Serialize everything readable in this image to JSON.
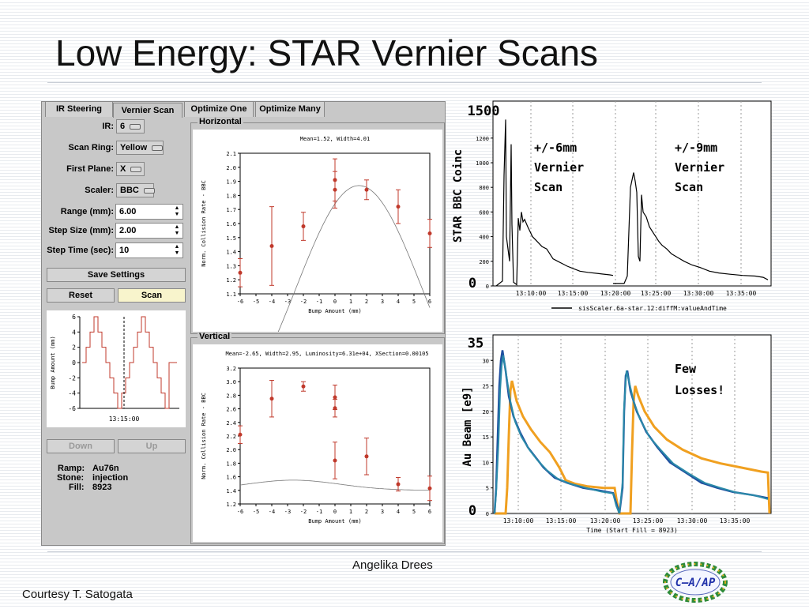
{
  "slide": {
    "title": "Low Energy: STAR Vernier Scans",
    "author": "Angelika Drees",
    "courtesy": "Courtesy T. Satogata",
    "logo_text": "C–A/AP"
  },
  "tabs": [
    "IR Steering",
    "Vernier Scan",
    "Optimize One",
    "Optimize Many"
  ],
  "controls": {
    "ir": {
      "label": "IR:",
      "value": "6"
    },
    "scan_ring": {
      "label": "Scan Ring:",
      "value": "Yellow"
    },
    "first_plane": {
      "label": "First Plane:",
      "value": "X"
    },
    "scaler": {
      "label": "Scaler:",
      "value": "BBC"
    },
    "range": {
      "label": "Range (mm):",
      "value": "6.00"
    },
    "step_size": {
      "label": "Step Size (mm):",
      "value": "2.00"
    },
    "step_time": {
      "label": "Step Time (sec):",
      "value": "10"
    },
    "save_settings": "Save Settings",
    "reset": "Reset",
    "scan": "Scan",
    "down": "Down",
    "up": "Up",
    "ramp_label": "Ramp:",
    "ramp_value": "Au76n",
    "stone_label": "Stone:",
    "stone_value": "injection",
    "fill_label": "Fill:",
    "fill_value": "8923"
  },
  "frames": {
    "horizontal": "Horizontal",
    "vertical": "Vertical"
  },
  "chart_data": [
    {
      "type": "line",
      "id": "bump-history",
      "ylabel": "Bump Amount (mm)",
      "yticks": [
        "6",
        "4",
        "2",
        "0",
        "-2",
        "-4",
        "-6"
      ],
      "ylim": [
        -6,
        6
      ],
      "xtick": "13:15:00",
      "color": "#c0392b",
      "steps": [
        0,
        2,
        4,
        6,
        4,
        2,
        0,
        -2,
        -4,
        -6,
        -4,
        -2,
        0,
        2,
        4,
        6,
        4,
        2,
        0,
        -2,
        -4,
        -6,
        0,
        0
      ]
    },
    {
      "type": "scatter",
      "id": "horizontal-scan",
      "title": "Mean=1.52, Width=4.01",
      "xlabel": "Bump Amount (mm)",
      "ylabel": "Norm. Collision Rate - BBC",
      "xticks": [
        "-6",
        "-5",
        "-4",
        "-3",
        "-2",
        "-1",
        "0",
        "1",
        "2",
        "3",
        "4",
        "5",
        "6"
      ],
      "yticks": [
        "2.1",
        "2.0",
        "1.9",
        "1.8",
        "1.7",
        "1.6",
        "1.5",
        "1.4",
        "1.3",
        "1.2",
        "1.1"
      ],
      "xlim": [
        -6,
        6
      ],
      "ylim": [
        1.1,
        2.1
      ],
      "points": [
        {
          "x": -6,
          "y": 1.25,
          "err": 0.1
        },
        {
          "x": -4,
          "y": 1.44,
          "err": 0.28
        },
        {
          "x": -2,
          "y": 1.58,
          "err": 0.1
        },
        {
          "x": 0,
          "y": 1.91,
          "err": 0.15
        },
        {
          "x": 0,
          "y": 1.84,
          "err": 0.13
        },
        {
          "x": 2,
          "y": 1.84,
          "err": 0.07
        },
        {
          "x": 4,
          "y": 1.72,
          "err": 0.12
        },
        {
          "x": 6,
          "y": 1.53,
          "err": 0.1
        }
      ],
      "fit": {
        "mean": 1.52,
        "width": 4.01,
        "amplitude": 1.87,
        "offset": 0.0
      }
    },
    {
      "type": "scatter",
      "id": "vertical-scan",
      "title": "Mean=-2.65, Width=2.95, Luminosity=6.31e+04, XSection=0.00105",
      "xlabel": "Bump Amount (mm)",
      "ylabel": "Norm. Collision Rate - BBC",
      "xticks": [
        "-6",
        "-5",
        "-4",
        "-3",
        "-2",
        "-1",
        "0",
        "1",
        "2",
        "3",
        "4",
        "5",
        "6"
      ],
      "yticks": [
        "3.2",
        "3.0",
        "2.8",
        "2.6",
        "2.4",
        "2.2",
        "2.0",
        "1.8",
        "1.6",
        "1.4",
        "1.2"
      ],
      "xlim": [
        -6,
        6
      ],
      "ylim": [
        1.2,
        3.2
      ],
      "points": [
        {
          "x": -6,
          "y": 2.22,
          "err": 0.13
        },
        {
          "x": -4,
          "y": 2.75,
          "err": 0.27
        },
        {
          "x": -2,
          "y": 2.93,
          "err": 0.07
        },
        {
          "x": 0,
          "y": 2.77,
          "err": 0.18
        },
        {
          "x": 0,
          "y": 2.61,
          "err": 0.13
        },
        {
          "x": 0,
          "y": 1.84,
          "err": 0.27
        },
        {
          "x": 2,
          "y": 1.9,
          "err": 0.27
        },
        {
          "x": 4,
          "y": 1.49,
          "err": 0.1
        },
        {
          "x": 6,
          "y": 1.43,
          "err": 0.18
        }
      ],
      "fit": {
        "mean": -2.65,
        "width": 2.95,
        "amplitude": 1.55,
        "offset": 1.4
      }
    },
    {
      "type": "line",
      "id": "star-bbc-coinc",
      "ylabel": "STAR BBC Coinc",
      "ymax_label": "1500",
      "ymin_label": "0",
      "yticks": [
        "1200",
        "1000",
        "800",
        "600",
        "400",
        "200",
        "0"
      ],
      "xticks": [
        "13:10:00",
        "13:15:00",
        "13:20:00",
        "13:25:00",
        "13:30:00",
        "13:35:00"
      ],
      "ylim": [
        0,
        1500
      ],
      "legend": "sisScaler.6a-star.12:diffM:valueAndTime",
      "annotations": [
        "+/-6mm",
        "Vernier",
        "Scan",
        "+/-9mm",
        "Vernier",
        "Scan"
      ],
      "color": "#000000"
    },
    {
      "type": "line",
      "id": "au-beam",
      "ylabel": "Au Beam [e9]",
      "ymax_label": "35",
      "ymin_label": "0",
      "yticks": [
        "30",
        "25",
        "20",
        "15",
        "10",
        "5",
        "0"
      ],
      "xticks": [
        "13:10:00",
        "13:15:00",
        "13:20:00",
        "13:25:00",
        "13:30:00",
        "13:35:00"
      ],
      "xlabel": "Time (Start Fill = 8923)",
      "ylim": [
        0,
        35
      ],
      "annotations": [
        "Few",
        "Losses!"
      ],
      "series": [
        {
          "color": "#1f4fa0"
        },
        {
          "color": "#2a8aa8"
        },
        {
          "color": "#f0a020"
        }
      ]
    }
  ]
}
